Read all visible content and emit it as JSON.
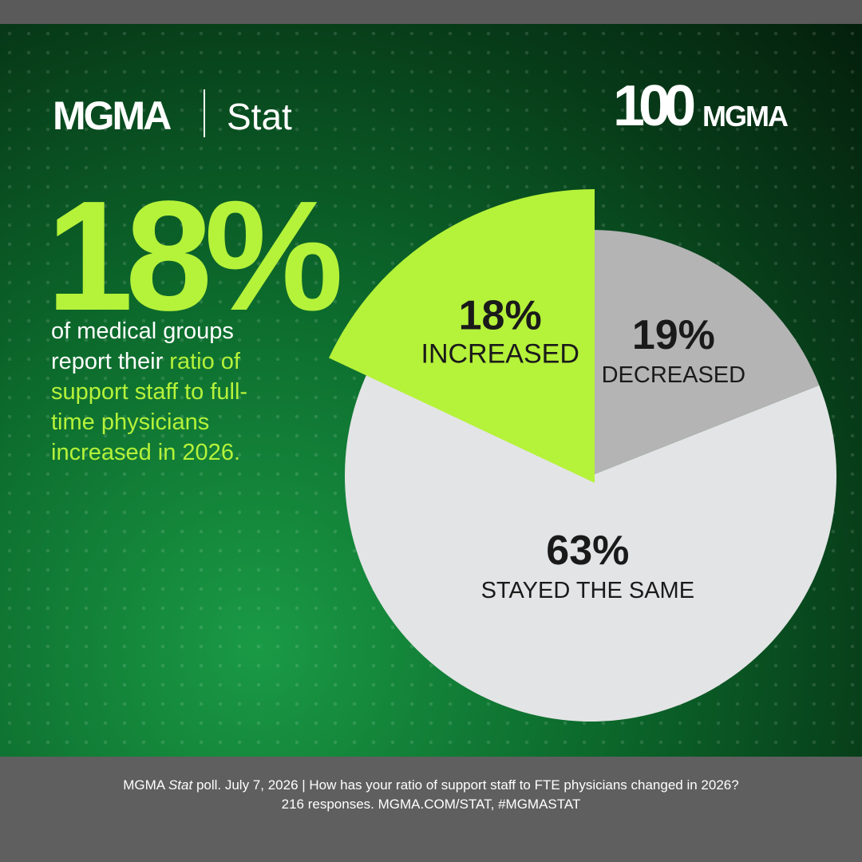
{
  "header": {
    "logo_left": "MGMA",
    "logo_left_sub": "Stat",
    "logo_right_number": "100",
    "logo_right_text": "MGMA"
  },
  "headline": {
    "value": "18%",
    "text_plain": "of medical groups report their",
    "text_highlight": "ratio of support staff to full-time physicians increased in 2026."
  },
  "chart_data": {
    "type": "pie",
    "categories": [
      "INCREASED",
      "DECREASED",
      "STAYED THE SAME"
    ],
    "values": [
      18,
      19,
      63
    ],
    "value_labels": [
      "18%",
      "19%",
      "63%"
    ],
    "colors": [
      "#b5f23a",
      "#b4b4b4",
      "#e3e4e5"
    ]
  },
  "footer": {
    "source_prefix": "MGMA",
    "source_italic": "Stat",
    "source_rest": "poll. July 7, 2026  |  How has your ratio of support staff to FTE physicians changed in 2026?",
    "line2": "216 responses. MGMA.COM/STAT, #MGMASTAT"
  }
}
